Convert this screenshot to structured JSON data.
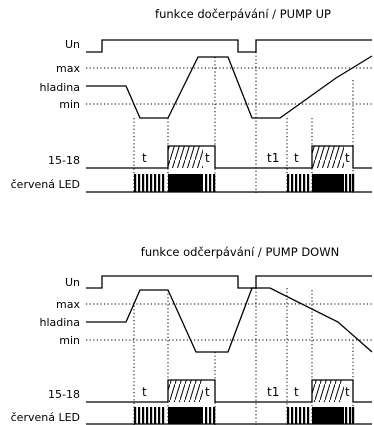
{
  "panels": [
    {
      "title": "funkce dočerpávání / PUMP UP",
      "labels": {
        "un": "Un",
        "max": "max",
        "level": "hladina",
        "min": "min",
        "relay": "15-18",
        "led": "červená LED"
      },
      "timer_labels": [
        "t",
        "t",
        "t1",
        "t",
        "t"
      ]
    },
    {
      "title": "funkce odčerpávání / PUMP DOWN",
      "labels": {
        "un": "Un",
        "max": "max",
        "level": "hladina",
        "min": "min",
        "relay": "15-18",
        "led": "červená LED"
      },
      "timer_labels": [
        "t",
        "t",
        "t1",
        "t",
        "t"
      ]
    }
  ]
}
